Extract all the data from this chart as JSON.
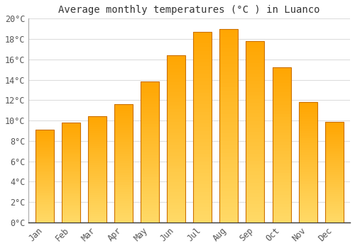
{
  "title": "Average monthly temperatures (°C ) in Luanco",
  "months": [
    "Jan",
    "Feb",
    "Mar",
    "Apr",
    "May",
    "Jun",
    "Jul",
    "Aug",
    "Sep",
    "Oct",
    "Nov",
    "Dec"
  ],
  "values": [
    9.1,
    9.8,
    10.4,
    11.6,
    13.8,
    16.4,
    18.7,
    19.0,
    17.8,
    15.2,
    11.8,
    9.9
  ],
  "bar_color_top": "#FFA500",
  "bar_color_bottom": "#FFD966",
  "bar_edge_color": "#CC7000",
  "background_color": "#FFFFFF",
  "grid_color": "#DDDDDD",
  "ylim": [
    0,
    20
  ],
  "ytick_step": 2,
  "title_fontsize": 10,
  "tick_fontsize": 8.5,
  "tick_color": "#555555",
  "font_family": "monospace"
}
